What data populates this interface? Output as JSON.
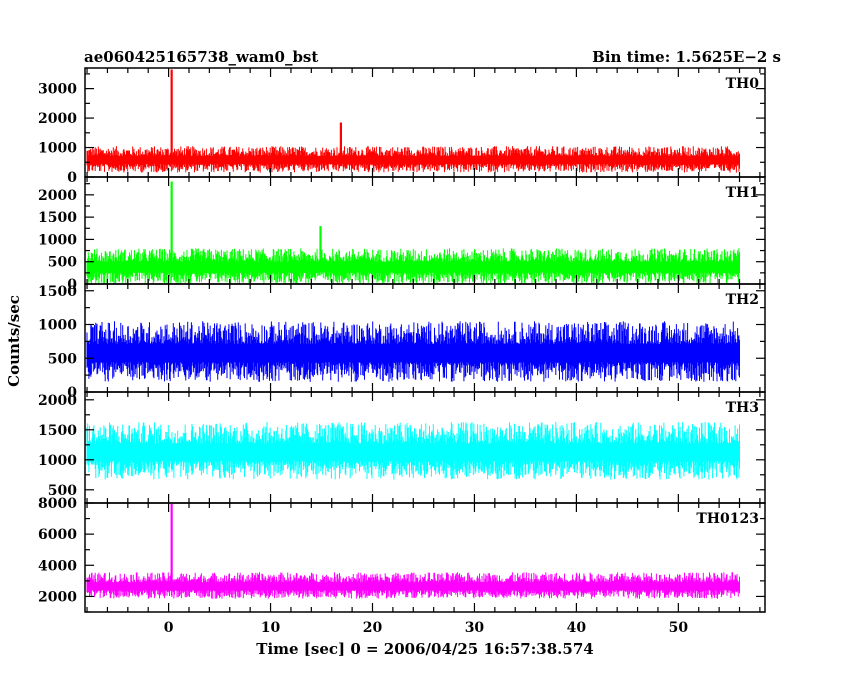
{
  "header": {
    "title": "ae060425165738_wam0_bst",
    "bin_time": "Bin time: 1.5625E−2 s"
  },
  "chart_data": {
    "type": "line",
    "xlabel": "Time [sec] 0 = 2006/04/25 16:57:38.574",
    "ylabel": "Counts/sec",
    "xlim": [
      -8.2,
      58.5
    ],
    "data_range": [
      -8,
      56
    ],
    "xticks": [
      0,
      10,
      20,
      30,
      40,
      50
    ],
    "x_minor_step": 2,
    "grid": false,
    "panels": [
      {
        "name": "TH0",
        "color": "#ff0000",
        "ylim": [
          0,
          3700
        ],
        "yticks": [
          0,
          1000,
          2000,
          3000
        ],
        "y_minor_step": 500,
        "base": 600,
        "spread": 450,
        "floor": 0,
        "peak_limit": 1650,
        "spikes": [
          {
            "x": 0.3,
            "y": 3650
          },
          {
            "x": 16.9,
            "y": 1850
          }
        ]
      },
      {
        "name": "TH1",
        "color": "#00ff00",
        "ylim": [
          0,
          2400
        ],
        "yticks": [
          0,
          500,
          1000,
          1500,
          2000
        ],
        "y_minor_step": 250,
        "base": 400,
        "spread": 400,
        "floor": 0,
        "peak_limit": 1150,
        "spikes": [
          {
            "x": 0.3,
            "y": 2300
          },
          {
            "x": 14.9,
            "y": 1300
          }
        ]
      },
      {
        "name": "TH2",
        "color": "#0000ff",
        "ylim": [
          0,
          1600
        ],
        "yticks": [
          0,
          500,
          1000,
          1500
        ],
        "y_minor_step": 250,
        "base": 600,
        "spread": 450,
        "floor": 30,
        "peak_limit": 1600,
        "spikes": []
      },
      {
        "name": "TH3",
        "color": "#00ffff",
        "ylim": [
          280,
          2130
        ],
        "yticks": [
          500,
          1000,
          1500,
          2000
        ],
        "y_minor_step": 250,
        "base": 1150,
        "spread": 480,
        "floor": 300,
        "peak_limit": 2130,
        "spikes": []
      },
      {
        "name": "TH0123",
        "color": "#ff00ff",
        "ylim": [
          1000,
          8000
        ],
        "yticks": [
          2000,
          4000,
          6000,
          8000
        ],
        "y_minor_step": 1000,
        "base": 2700,
        "spread": 850,
        "floor": 1300,
        "peak_limit": 4500,
        "spikes": [
          {
            "x": 0.3,
            "y": 8000
          }
        ]
      }
    ]
  }
}
